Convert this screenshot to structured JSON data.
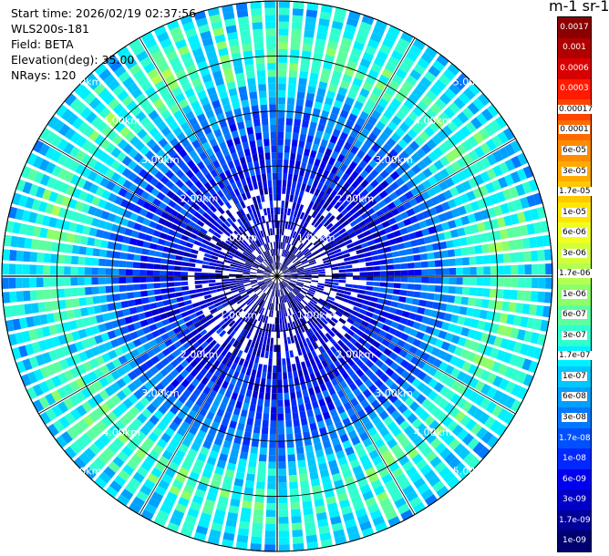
{
  "info": {
    "start_time": "Start time: 2026/02/19 02:37:56",
    "instrument": "WLS200s-181",
    "field": "Field: BETA",
    "elevation": "Elevation(deg): 35.00",
    "nrays": "NRays: 120"
  },
  "colorbar": {
    "unit_label": "m-1 sr-1",
    "ticks": [
      "0.0017",
      "0.001",
      "0.0006",
      "0.0003",
      "0.00017",
      "0.0001",
      "6e-05",
      "3e-05",
      "1.7e-05",
      "1e-05",
      "6e-06",
      "3e-06",
      "1.7e-06",
      "1e-06",
      "6e-07",
      "3e-07",
      "1.7e-07",
      "1e-07",
      "6e-08",
      "3e-08",
      "1.7e-08",
      "1e-08",
      "6e-09",
      "3e-09",
      "1.7e-09",
      "1e-09"
    ],
    "colors": [
      "#8b0000",
      "#b00000",
      "#d80000",
      "#ff1a00",
      "#ff4400",
      "#ff6a00",
      "#ff8c00",
      "#ffaa00",
      "#ffc800",
      "#ffe600",
      "#f0ff20",
      "#d2ff3a",
      "#b4ff52",
      "#8cff6a",
      "#5cffa0",
      "#30ffd0",
      "#00f0ff",
      "#00c8ff",
      "#00a0ff",
      "#0078ff",
      "#0050ff",
      "#0028ff",
      "#0000f0",
      "#0000c8",
      "#00009a",
      "#000070"
    ]
  },
  "chart_data": {
    "type": "ppi",
    "title": "",
    "field": "BETA",
    "nrays": 120,
    "max_range_km": 5.0,
    "range_rings_km": [
      1,
      2,
      3,
      4,
      5
    ],
    "ring_labels": [
      "1.00km",
      "2.00km",
      "3.00km",
      "4.00km",
      "5.00km"
    ],
    "spokes_deg": [
      0,
      30,
      60,
      90,
      120,
      150,
      180,
      210,
      240,
      270,
      300,
      330
    ],
    "profile": {
      "range_km": [
        0,
        1.0,
        2.0,
        3.0,
        3.6,
        4.2,
        5.0
      ],
      "log10_beta": [
        -9.0,
        -8.4,
        -8.0,
        -7.4,
        -6.6,
        -6.3,
        -6.9
      ]
    }
  }
}
